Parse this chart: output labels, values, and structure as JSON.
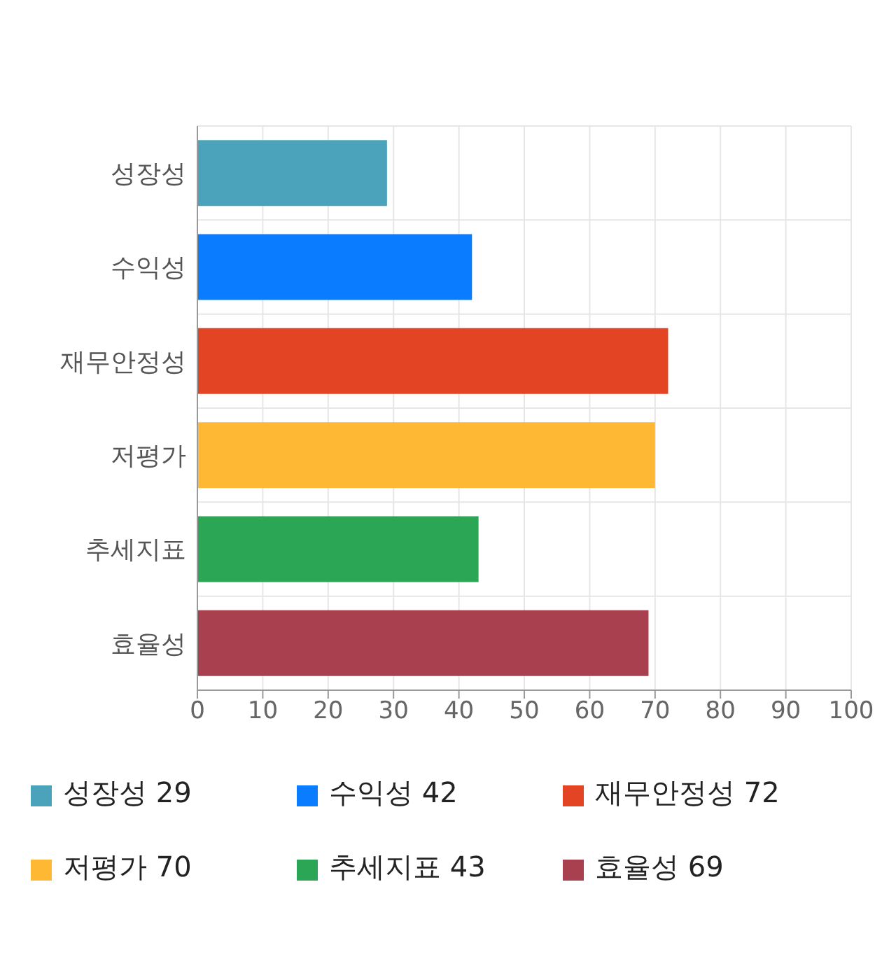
{
  "chart_data": {
    "type": "bar",
    "orientation": "horizontal",
    "stacked": true,
    "categories": [
      "성장성",
      "수익성",
      "재무안정성",
      "저평가",
      "추세지표",
      "효율성"
    ],
    "series": [
      {
        "name": "성장성 29",
        "color": "#4aa3bb",
        "values": [
          29,
          null,
          null,
          null,
          null,
          null
        ]
      },
      {
        "name": "수익성 42",
        "color": "#0a7cff",
        "values": [
          null,
          42,
          null,
          null,
          null,
          null
        ]
      },
      {
        "name": "재무안정성 72",
        "color": "#e34524",
        "values": [
          null,
          null,
          72,
          null,
          null,
          null
        ]
      },
      {
        "name": "저평가 70",
        "color": "#ffb833",
        "values": [
          null,
          null,
          null,
          70,
          null,
          null
        ]
      },
      {
        "name": "추세지표 43",
        "color": "#2aa655",
        "values": [
          null,
          null,
          null,
          null,
          43,
          null
        ]
      },
      {
        "name": "효율성 69",
        "color": "#a8404f",
        "values": [
          null,
          null,
          null,
          null,
          null,
          69
        ]
      }
    ],
    "xlim": [
      0,
      100
    ],
    "xticks": [
      0,
      10,
      20,
      30,
      40,
      50,
      60,
      70,
      80,
      90,
      100
    ],
    "grid": true,
    "legend": "bottom"
  }
}
